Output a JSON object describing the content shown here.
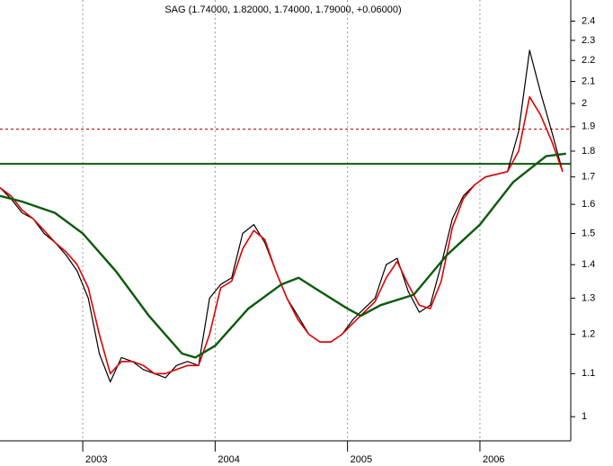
{
  "chart_data": {
    "type": "line",
    "title": "SAG (1.74000, 1.82000, 1.74000, 1.79000, +0.06000)",
    "log_y": true,
    "grid": true,
    "xlim": [
      2002.375,
      2006.686
    ],
    "xticks": [
      2003,
      2004,
      2005,
      2006
    ],
    "ylim": [
      0.948,
      2.515
    ],
    "yticks": [
      1.0,
      1.1,
      1.2,
      1.3,
      1.4,
      1.5,
      1.6,
      1.7,
      1.8,
      1.9,
      2.0,
      2.1,
      2.2,
      2.3,
      2.4
    ],
    "x": [
      2002.375,
      2002.458,
      2002.542,
      2002.625,
      2002.708,
      2002.792,
      2002.875,
      2002.958,
      2003.042,
      2003.125,
      2003.208,
      2003.292,
      2003.375,
      2003.458,
      2003.542,
      2003.625,
      2003.708,
      2003.792,
      2003.875,
      2003.958,
      2004.042,
      2004.125,
      2004.208,
      2004.292,
      2004.375,
      2004.458,
      2004.542,
      2004.625,
      2004.708,
      2004.792,
      2004.875,
      2004.958,
      2005.042,
      2005.125,
      2005.208,
      2005.292,
      2005.375,
      2005.458,
      2005.542,
      2005.625,
      2005.708,
      2005.792,
      2005.875,
      2005.958,
      2006.042,
      2006.125,
      2006.208,
      2006.292,
      2006.375,
      2006.458,
      2006.542,
      2006.625
    ],
    "series": [
      {
        "color": "#000000",
        "width": 1.2,
        "values": [
          1.66,
          1.62,
          1.57,
          1.55,
          1.5,
          1.47,
          1.43,
          1.38,
          1.3,
          1.15,
          1.08,
          1.14,
          1.13,
          1.11,
          1.1,
          1.09,
          1.12,
          1.13,
          1.12,
          1.3,
          1.34,
          1.36,
          1.5,
          1.53,
          1.47,
          1.38,
          1.3,
          1.25,
          1.2,
          1.18,
          1.18,
          1.2,
          1.24,
          1.27,
          1.3,
          1.4,
          1.42,
          1.32,
          1.26,
          1.28,
          1.4,
          1.55,
          1.63,
          1.67,
          1.7,
          1.71,
          1.72,
          1.88,
          2.25,
          2.05,
          1.88,
          1.72
        ]
      },
      {
        "color": "#e00000",
        "width": 1.6,
        "values": [
          1.66,
          1.63,
          1.58,
          1.55,
          1.51,
          1.47,
          1.44,
          1.4,
          1.33,
          1.2,
          1.1,
          1.13,
          1.13,
          1.12,
          1.1,
          1.1,
          1.11,
          1.12,
          1.12,
          1.2,
          1.33,
          1.35,
          1.45,
          1.51,
          1.48,
          1.38,
          1.3,
          1.24,
          1.2,
          1.18,
          1.18,
          1.2,
          1.23,
          1.26,
          1.29,
          1.36,
          1.41,
          1.34,
          1.28,
          1.27,
          1.35,
          1.52,
          1.62,
          1.67,
          1.7,
          1.71,
          1.72,
          1.8,
          2.03,
          1.95,
          1.84,
          1.72
        ]
      },
      {
        "color": "#0b5a0b",
        "width": 2.4,
        "x": [
          2002.375,
          2002.54,
          2002.79,
          2003.0,
          2003.25,
          2003.5,
          2003.75,
          2003.85,
          2004.0,
          2004.25,
          2004.5,
          2004.63,
          2004.75,
          2005.0,
          2005.1,
          2005.25,
          2005.5,
          2005.75,
          2006.0,
          2006.25,
          2006.5,
          2006.65
        ],
        "values": [
          1.63,
          1.61,
          1.57,
          1.5,
          1.38,
          1.25,
          1.15,
          1.14,
          1.17,
          1.27,
          1.34,
          1.36,
          1.33,
          1.27,
          1.25,
          1.28,
          1.31,
          1.43,
          1.53,
          1.68,
          1.78,
          1.79
        ]
      }
    ],
    "hlines": [
      {
        "value": 1.75,
        "color": "#0b5a0b",
        "width": 2,
        "dashed": false
      },
      {
        "value": 1.89,
        "color": "#c00000",
        "width": 1,
        "dashed": true
      }
    ]
  }
}
